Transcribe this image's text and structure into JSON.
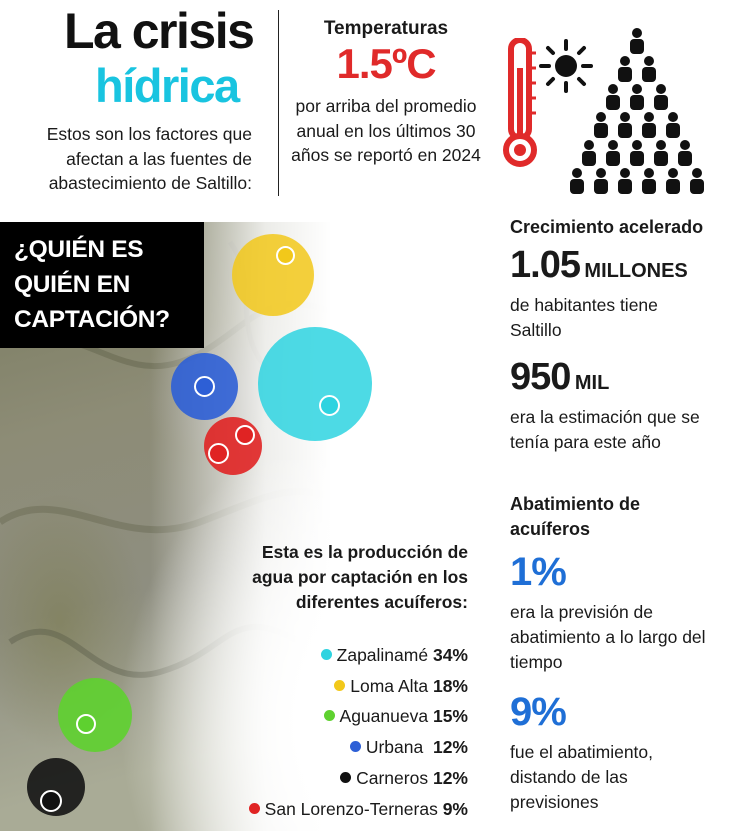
{
  "header": {
    "title_line1": "La crisis",
    "title_line2": "hídrica",
    "intro": "Estos son los factores que afectan a las fuentes de abastecimiento de Saltillo:"
  },
  "temperature": {
    "heading": "Temperaturas",
    "value": "1.5ºC",
    "text": "por arriba del promedio anual en los últimos 30 años se reportó en 2024"
  },
  "map": {
    "callout": "¿QUIÉN ES QUIÉN EN CAPTACIÓN?",
    "production_text": "Esta es la producción de agua por captación en los diferentes acuíferos:",
    "legend": [
      {
        "name": "Zapalinamé",
        "value": "34%",
        "color": "#2ed3e0"
      },
      {
        "name": "Loma Alta",
        "value": "18%",
        "color": "#f2c81a"
      },
      {
        "name": "Aguanueva",
        "value": "15%",
        "color": "#5ed12f"
      },
      {
        "name": "Urbana",
        "value": "12%",
        "color": "#2d5fd6"
      },
      {
        "name": "Carneros",
        "value": "12%",
        "color": "#111111"
      },
      {
        "name": "San Lorenzo-Terneras",
        "value": "9%",
        "color": "#e02323"
      }
    ]
  },
  "growth": {
    "heading": "Crecimiento acelerado",
    "pop_value": "1.05",
    "pop_unit": "MILLONES",
    "pop_text": "de habitantes tiene Saltillo",
    "est_value": "950",
    "est_unit": "MIL",
    "est_text": "era la estimación que se tenía para este año"
  },
  "aquifers": {
    "heading": "Abatimiento de acuíferos",
    "forecast_value": "1%",
    "forecast_text": "era la previsión de abatimiento a lo largo del tiempo",
    "actual_value": "9%",
    "actual_text": "fue el abatimiento, distando de las previsiones"
  },
  "icons": {
    "thermometer": "thermometer-icon",
    "sun": "sun-icon",
    "population": "people-pyramid-icon"
  }
}
